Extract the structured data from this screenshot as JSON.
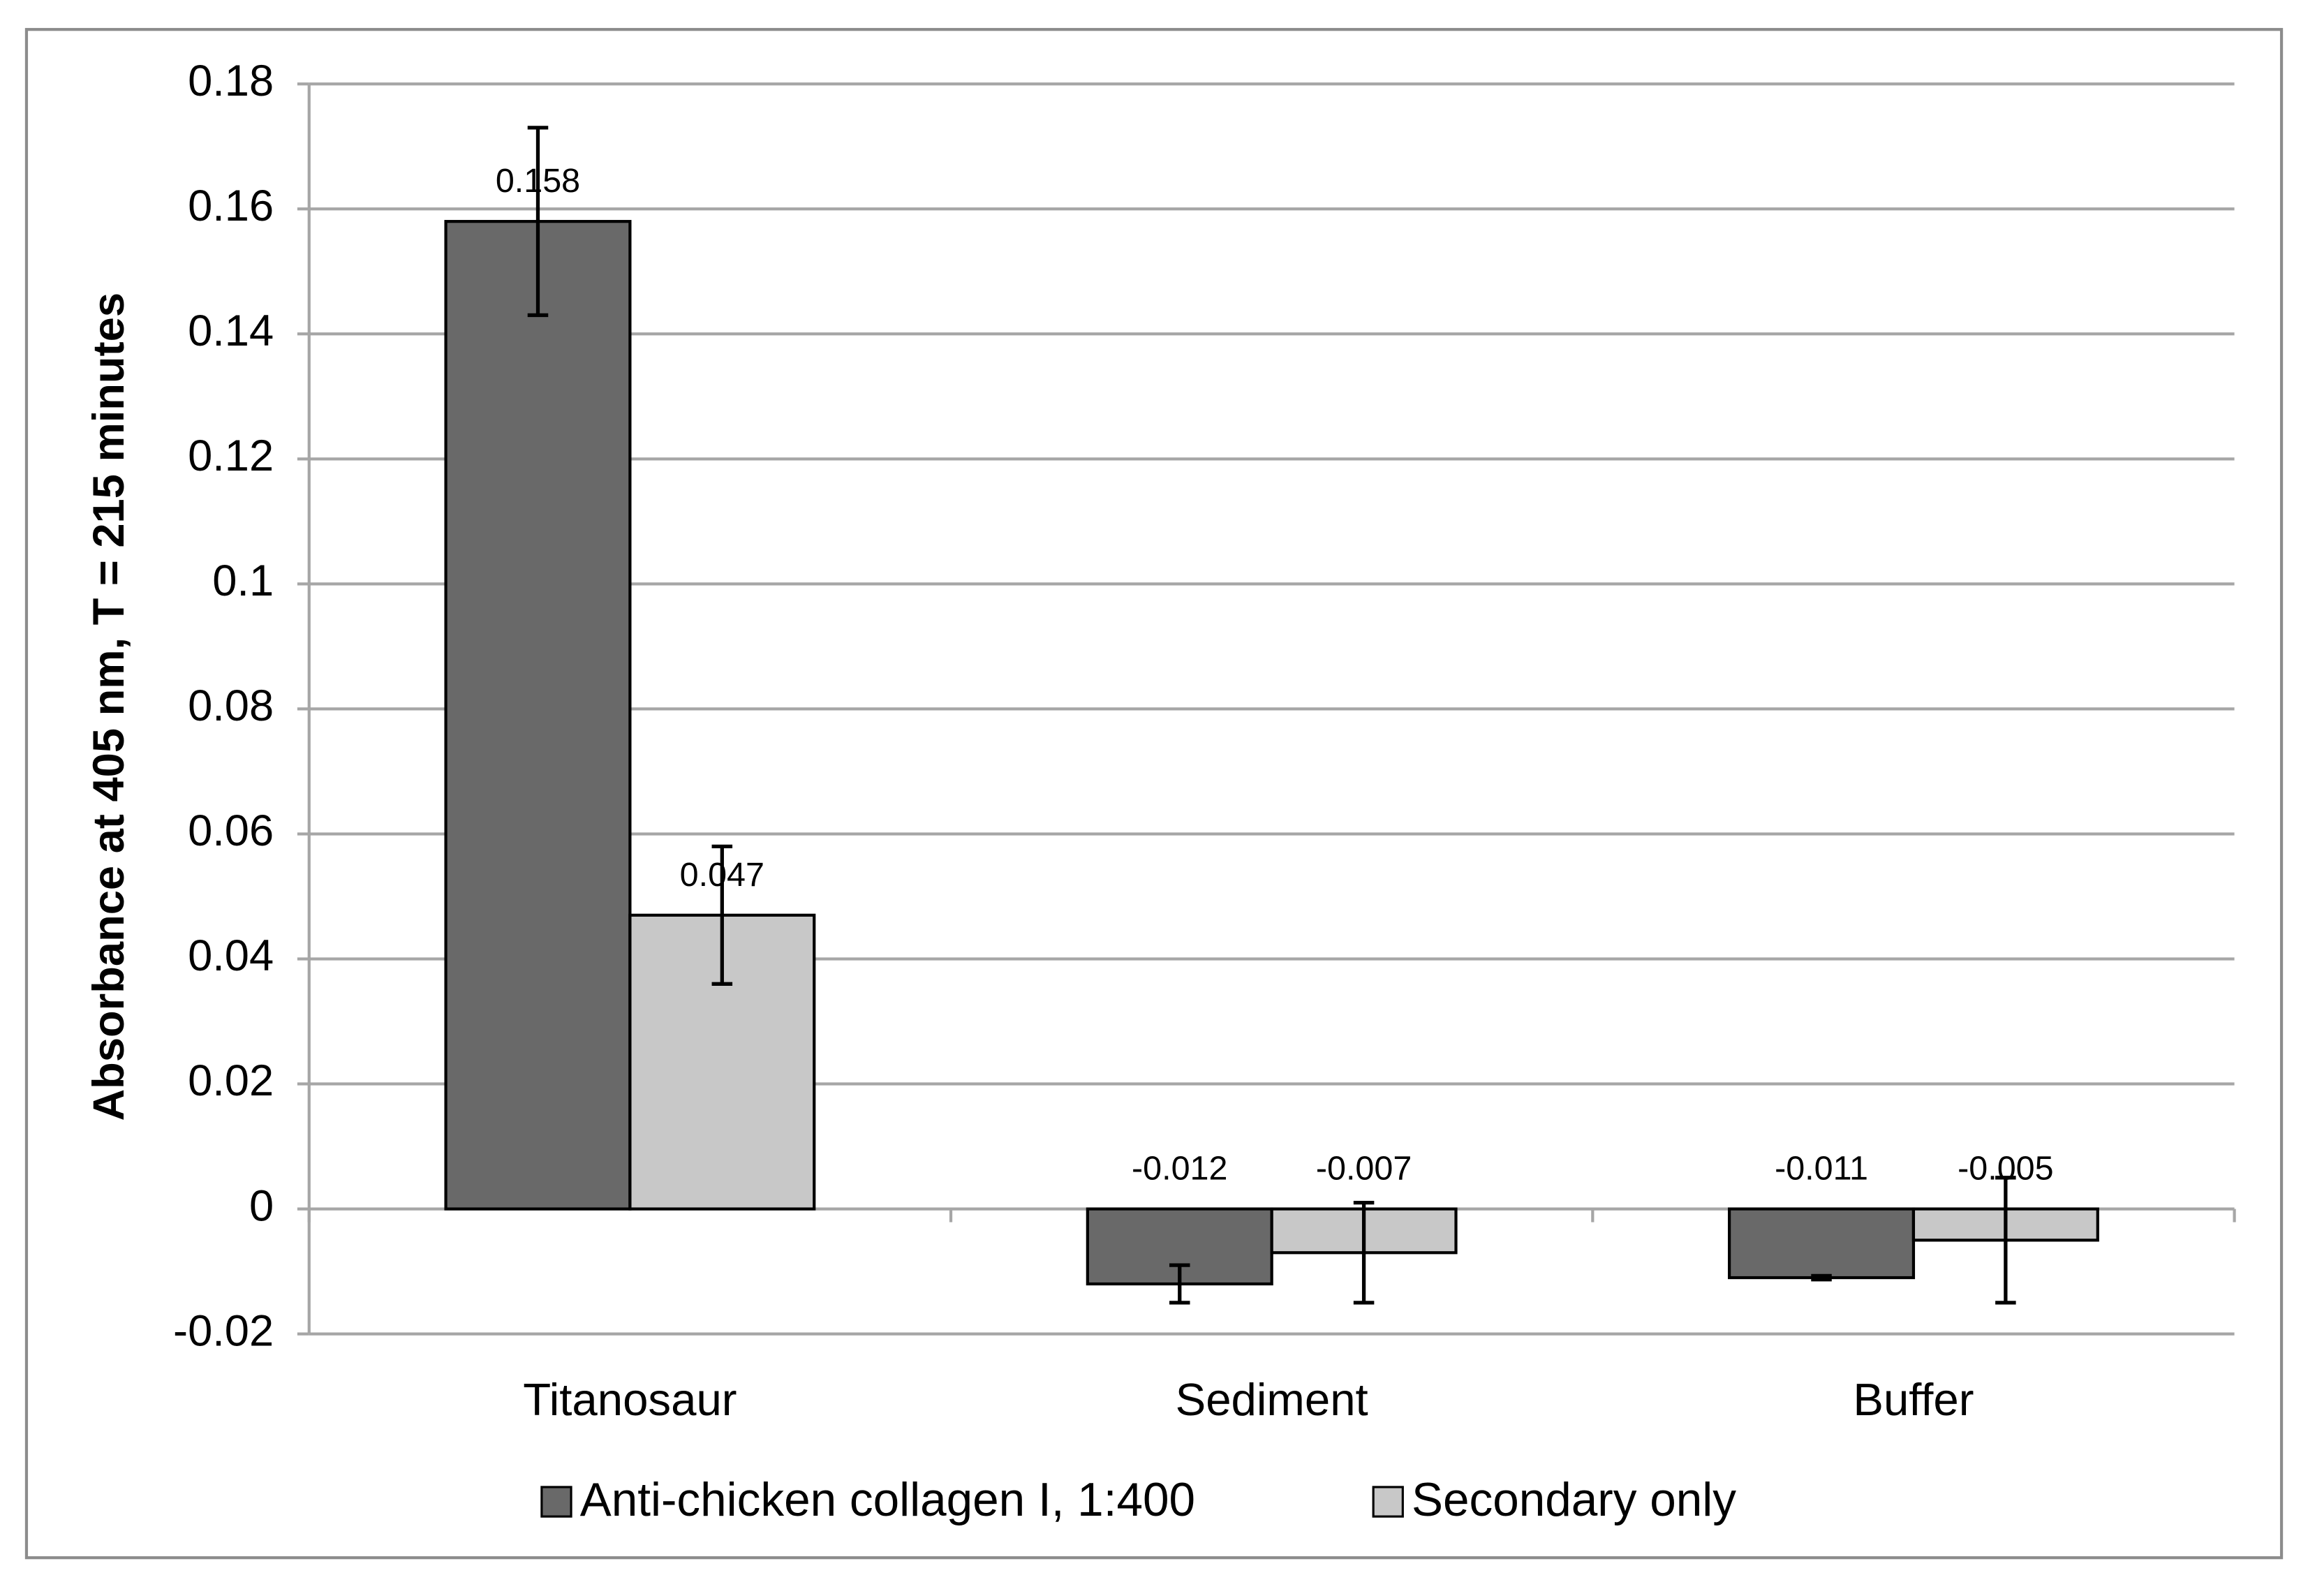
{
  "chart_data": {
    "type": "bar",
    "y_label": "Absorbance at 405 nm, T = 215 minutes",
    "categories": [
      "Titanosaur",
      "Sediment",
      "Buffer"
    ],
    "series": [
      {
        "name": "Anti-chicken collagen I, 1:400",
        "color": "#696969",
        "values": [
          0.158,
          -0.012,
          -0.011
        ],
        "errors": [
          0.015,
          0.003,
          0.0003
        ]
      },
      {
        "name": "Secondary only",
        "color": "#c8c8c8",
        "values": [
          0.047,
          -0.007,
          -0.005
        ],
        "errors": [
          0.011,
          0.008,
          0.01
        ]
      }
    ],
    "ylim": [
      -0.02,
      0.18
    ],
    "yticks": [
      -0.02,
      0,
      0.02,
      0.04,
      0.06,
      0.08,
      0.1,
      0.12,
      0.14,
      0.16,
      0.18
    ],
    "grid": true,
    "legend": "bottom"
  }
}
